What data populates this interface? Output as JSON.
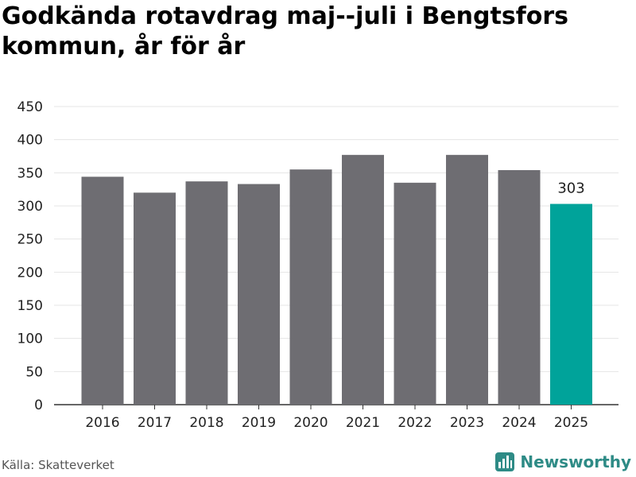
{
  "header": {
    "title": "Godkända rotavdrag maj--juli i Bengtsfors kommun, år för år"
  },
  "footer": {
    "source": "Källa: Skatteverket",
    "brand": "Newsworthy",
    "brand_icon": "newsworthy-logo-icon"
  },
  "colors": {
    "bar": "#6e6d72",
    "highlight": "#00a39a",
    "grid": "#e4e4e4",
    "brand": "#2e8b86"
  },
  "chart_data": {
    "type": "bar",
    "title": "Godkända rotavdrag maj--juli i Bengtsfors kommun, år för år",
    "xlabel": "",
    "ylabel": "",
    "categories": [
      "2016",
      "2017",
      "2018",
      "2019",
      "2020",
      "2021",
      "2022",
      "2023",
      "2024",
      "2025"
    ],
    "values": [
      344,
      320,
      337,
      333,
      355,
      377,
      335,
      377,
      354,
      303
    ],
    "highlight_index": 9,
    "data_labels": [
      {
        "index": 9,
        "text": "303"
      }
    ],
    "ylim": [
      0,
      450
    ],
    "yticks": [
      0,
      50,
      100,
      150,
      200,
      250,
      300,
      350,
      400,
      450
    ],
    "grid": true,
    "legend": "none"
  }
}
